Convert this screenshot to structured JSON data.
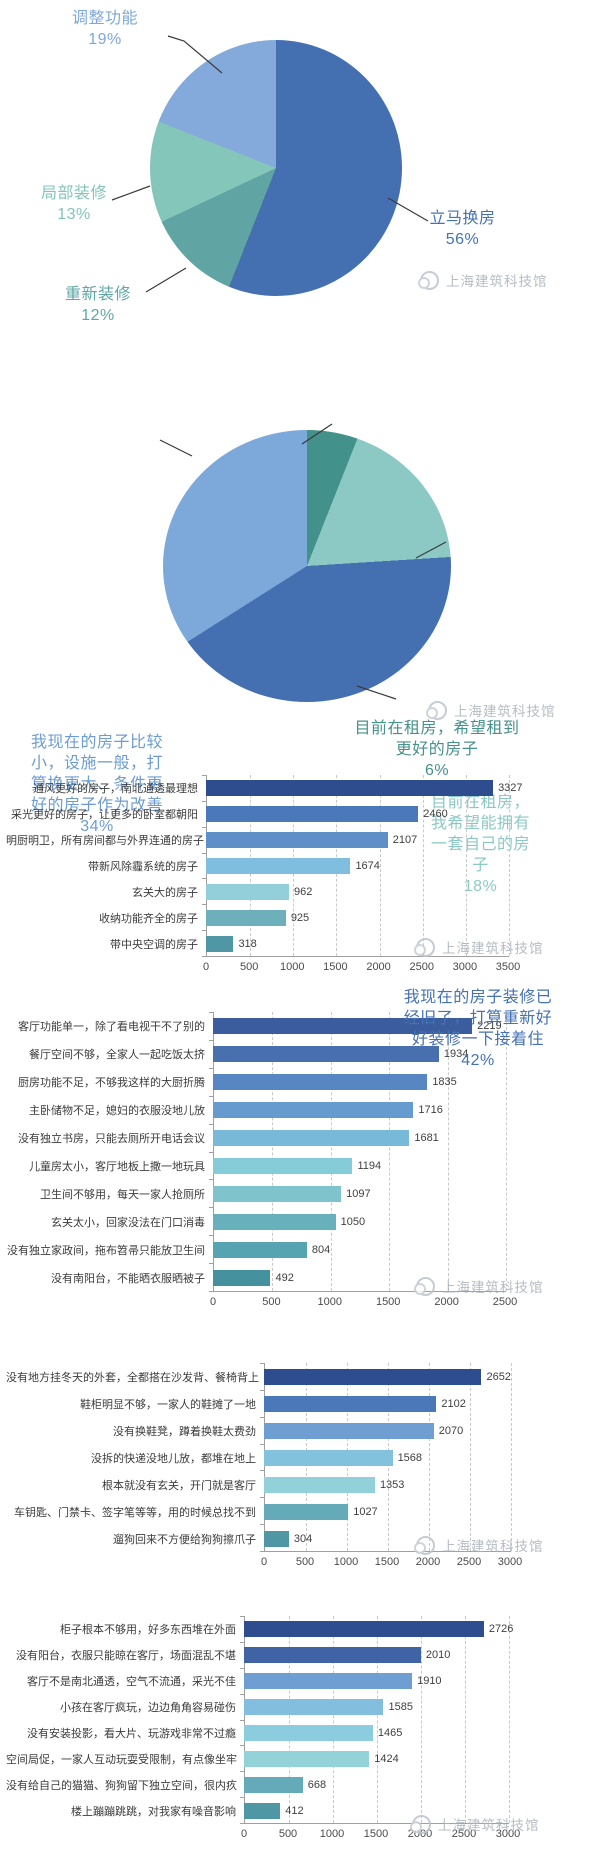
{
  "watermark": {
    "text": "上海建筑科技馆"
  },
  "chart_data": [
    {
      "type": "pie",
      "name": "换房/装修意向分布",
      "legend_position": "callout-labels",
      "slices": [
        {
          "label": "立马换房",
          "value": 56,
          "pct_label": "56%",
          "color": "#4470b2",
          "label_color": "#4472b4",
          "label_text": "立马换房\n56%"
        },
        {
          "label": "重新装修",
          "value": 12,
          "pct_label": "12%",
          "color": "#60a5a4",
          "label_color": "#5fa6a6",
          "label_text": "重新装修\n12%"
        },
        {
          "label": "局部装修",
          "value": 13,
          "pct_label": "13%",
          "color": "#85c6ba",
          "label_color": "#82c4ba",
          "label_text": "局部装修\n13%"
        },
        {
          "label": "调整功能",
          "value": 19,
          "pct_label": "19%",
          "color": "#83aadb",
          "label_color": "#7ea8dc",
          "label_text": "调整功能\n19%"
        }
      ]
    },
    {
      "type": "pie",
      "name": "当前住房状况分布",
      "legend_position": "callout-labels",
      "slices": [
        {
          "label": "目前在租房，希望租到更好的房子",
          "value": 6,
          "pct_label": "6%",
          "color": "#43918b",
          "label_color": "#47918c",
          "label_text": "目前在租房，希望租到\n更好的房子\n6%"
        },
        {
          "label": "目前在租房，我希望能拥有一套自己的房子",
          "value": 18,
          "pct_label": "18%",
          "color": "#8cc9c5",
          "label_color": "#8cc9c5",
          "label_text": "目前在租房，\n我希望能拥有\n一套自己的房\n子\n18%"
        },
        {
          "label": "我现在的房子装修已经旧了，打算重新好好装修一下接着住",
          "value": 42,
          "pct_label": "42%",
          "color": "#4470b2",
          "label_color": "#4472b4",
          "label_text": "我现在的房子装修已\n经旧了，打算重新好\n好装修一下接着住\n42%"
        },
        {
          "label": "我现在的房子比较小，设施一般，打算换更大、条件更好的房子作为改善",
          "value": 34,
          "pct_label": "34%",
          "color": "#7da9da",
          "label_color": "#6d9cd2",
          "label_text": "我现在的房子比较\n小，设施一般，打\n算换更大、条件更\n好的房子作为改善\n34%"
        }
      ]
    },
    {
      "type": "bar",
      "name": "想要什么样的房子",
      "orientation": "horizontal",
      "categories": [
        "通风更好的房子，南北通透最理想",
        "采光更好的房子，让更多的卧室都朝阳",
        "明厨明卫，所有房间都与外界连通的房子",
        "带新风除霾系统的房子",
        "玄关大的房子",
        "收纳功能齐全的房子",
        "带中央空调的房子"
      ],
      "values": [
        3327,
        2460,
        2107,
        1674,
        962,
        925,
        318
      ],
      "colors": [
        "#2e4d8e",
        "#4a78b8",
        "#5e8fc9",
        "#7fbede",
        "#93cedb",
        "#6dafbb",
        "#4f97a4"
      ],
      "xlim": [
        0,
        3500
      ],
      "ticks": [
        0,
        500,
        1000,
        1500,
        2000,
        2500,
        3000,
        3500
      ],
      "grid": "dashed-vertical"
    },
    {
      "type": "bar",
      "name": "户型功能痛点",
      "orientation": "horizontal",
      "categories": [
        "客厅功能单一，除了看电视干不了别的",
        "餐厅空间不够，全家人一起吃饭太挤",
        "厨房功能不足，不够我这样的大厨折腾",
        "主卧储物不足，媳妇的衣服没地儿放",
        "没有独立书房，只能去厕所开电话会议",
        "儿童房太小，客厅地板上撒一地玩具",
        "卫生间不够用，每天一家人抢厕所",
        "玄关太小，回家没法在门口消毒",
        "没有独立家政间，拖布笤帚只能放卫生间",
        "没有南阳台，不能晒衣服晒被子"
      ],
      "values": [
        2219,
        1934,
        1835,
        1716,
        1681,
        1194,
        1097,
        1050,
        804,
        492
      ],
      "colors": [
        "#3c5d9d",
        "#486fae",
        "#5886c3",
        "#659bce",
        "#79b9d8",
        "#86cbd8",
        "#7fc3cd",
        "#68b0bc",
        "#56a3b1",
        "#45929e"
      ],
      "xlim": [
        0,
        2500
      ],
      "ticks": [
        0,
        500,
        1000,
        1500,
        2000,
        2500
      ],
      "grid": "dashed-vertical"
    },
    {
      "type": "bar",
      "name": "玄关收纳痛点",
      "orientation": "horizontal",
      "categories": [
        "没有地方挂冬天的外套，全都搭在沙发背、餐椅背上",
        "鞋柜明显不够，一家人的鞋摊了一地",
        "没有换鞋凳，蹲着换鞋太费劲",
        "没拆的快递没地儿放，都堆在地上",
        "根本就没有玄关，开门就是客厅",
        "车钥匙、门禁卡、签字笔等等，用的时候总找不到",
        "遛狗回来不方便给狗狗擦爪子"
      ],
      "values": [
        2652,
        2102,
        2070,
        1568,
        1353,
        1027,
        304
      ],
      "colors": [
        "#2e4d8e",
        "#4a78b8",
        "#6f9fd2",
        "#83c2dd",
        "#92d0da",
        "#64aab8",
        "#4f97a4"
      ],
      "xlim": [
        0,
        3000
      ],
      "ticks": [
        0,
        500,
        1000,
        1500,
        2000,
        2500,
        3000
      ],
      "grid": "dashed-vertical"
    },
    {
      "type": "bar",
      "name": "客厅居住痛点",
      "orientation": "horizontal",
      "categories": [
        "柜子根本不够用，好多东西堆在外面",
        "没有阳台，衣服只能晾在客厅，场面混乱不堪",
        "客厅不是南北通透，空气不流通，采光不佳",
        "小孩在客厅疯玩，边边角角容易碰伤",
        "没有安装投影，看大片、玩游戏非常不过瘾",
        "空间局促，一家人互动玩耍受限制，有点像坐牢",
        "没有给自己的猫猫、狗狗留下独立空间，很内疚",
        "楼上蹦蹦跳跳，对我家有噪音影响"
      ],
      "values": [
        2726,
        2010,
        1910,
        1585,
        1465,
        1424,
        668,
        412
      ],
      "colors": [
        "#2e4d8e",
        "#3f63a4",
        "#6f9fd2",
        "#83bede",
        "#8cccdf",
        "#92d2d8",
        "#64aab8",
        "#4f97a4"
      ],
      "xlim": [
        0,
        3000
      ],
      "ticks": [
        0,
        500,
        1000,
        1500,
        2000,
        2500,
        3000
      ],
      "grid": "dashed-vertical"
    }
  ]
}
